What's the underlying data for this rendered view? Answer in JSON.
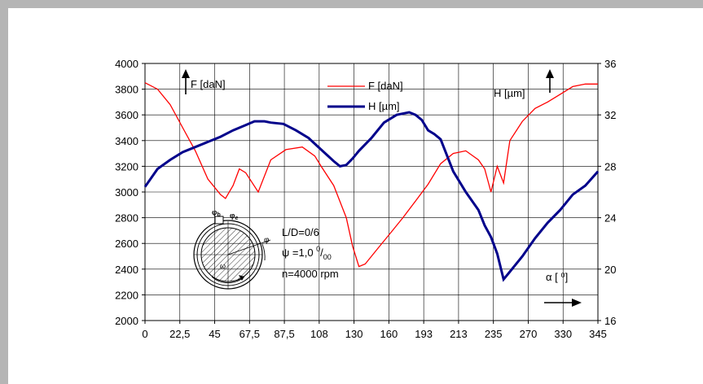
{
  "chart_data": {
    "type": "line",
    "x_categories": [
      "0",
      "22,5",
      "45",
      "67,5",
      "87,5",
      "108",
      "130",
      "160",
      "193",
      "213",
      "235",
      "270",
      "330",
      "345"
    ],
    "x_range": [
      0,
      360
    ],
    "y_left": {
      "range": [
        2000,
        4000
      ],
      "ticks": [
        2000,
        2200,
        2400,
        2600,
        2800,
        3000,
        3200,
        3400,
        3600,
        3800,
        4000
      ]
    },
    "y_right": {
      "range": [
        16,
        36
      ],
      "ticks": [
        16,
        20,
        24,
        28,
        32,
        36
      ]
    },
    "grid": true,
    "legend": {
      "position": "top-center",
      "items": [
        {
          "label": "F [daN]",
          "color": "#ff0000"
        },
        {
          "label": "H [µm]",
          "color": "#00008b"
        }
      ]
    },
    "series": [
      {
        "name": "F [daN]",
        "axis": "left",
        "color": "#ff0000",
        "x": [
          0,
          10,
          20,
          30,
          40,
          50,
          60,
          64,
          70,
          75,
          80,
          90,
          100,
          112,
          125,
          135,
          140,
          150,
          160,
          165,
          170,
          175,
          185,
          195,
          205,
          215,
          225,
          235,
          245,
          255,
          265,
          270,
          275,
          280,
          285,
          290,
          300,
          310,
          320,
          330,
          340,
          350,
          360
        ],
        "y": [
          3850,
          3800,
          3680,
          3500,
          3320,
          3100,
          2980,
          2950,
          3050,
          3180,
          3150,
          3000,
          3250,
          3330,
          3350,
          3280,
          3200,
          3050,
          2800,
          2580,
          2420,
          2440,
          2560,
          2680,
          2800,
          2930,
          3060,
          3220,
          3300,
          3320,
          3250,
          3180,
          3000,
          3200,
          3070,
          3400,
          3550,
          3650,
          3700,
          3760,
          3820,
          3840,
          3840
        ]
      },
      {
        "name": "H [µm]",
        "axis": "right",
        "color": "#00008b",
        "x": [
          0,
          10,
          20,
          30,
          40,
          50,
          60,
          70,
          80,
          87,
          95,
          100,
          110,
          120,
          130,
          140,
          150,
          155,
          160,
          165,
          170,
          180,
          190,
          200,
          210,
          215,
          220,
          225,
          230,
          235,
          245,
          255,
          265,
          270,
          275,
          280,
          285,
          290,
          300,
          310,
          320,
          330,
          340,
          350,
          360
        ],
        "y": [
          26.4,
          27.8,
          28.5,
          29.1,
          29.5,
          29.9,
          30.3,
          30.8,
          31.2,
          31.5,
          31.5,
          31.4,
          31.3,
          30.8,
          30.2,
          29.3,
          28.4,
          28.0,
          28.1,
          28.6,
          29.2,
          30.2,
          31.4,
          32.0,
          32.2,
          32.0,
          31.6,
          30.8,
          30.5,
          30.1,
          27.6,
          26.0,
          24.6,
          23.4,
          22.5,
          21.2,
          19.2,
          19.8,
          21.0,
          22.4,
          23.6,
          24.6,
          25.8,
          26.5,
          27.6
        ]
      }
    ]
  },
  "labels": {
    "f_axis": "F [daN]",
    "h_axis": "H [µm]",
    "alpha": "α [ ⁰]",
    "ld": "L/D=0/6",
    "psi": "ψ =1,0 ⁰/₀₀",
    "rpm": "n=4000 rpm",
    "phi_b": "φb",
    "phi_e": "φe",
    "phi": "φ",
    "omega": "ω"
  }
}
